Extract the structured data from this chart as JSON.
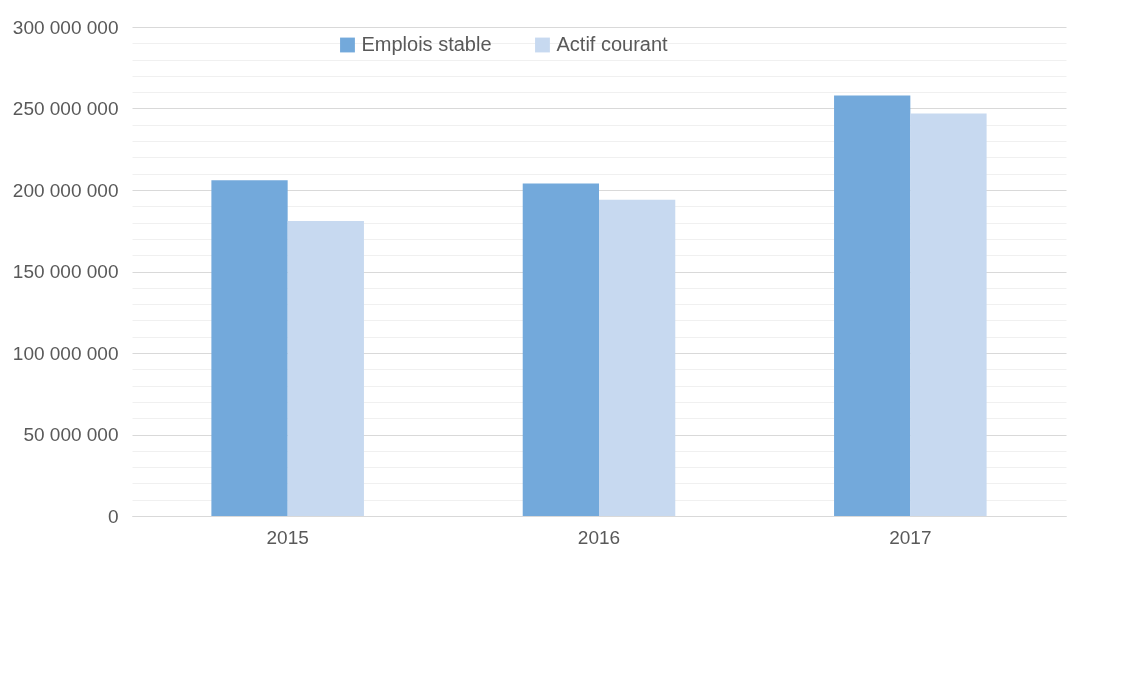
{
  "chart_data": {
    "type": "bar",
    "categories": [
      "2015",
      "2016",
      "2017"
    ],
    "series": [
      {
        "name": "Emplois stable",
        "color": "#73a9db",
        "values": [
          206000000,
          204000000,
          258000000
        ]
      },
      {
        "name": "Actif courant",
        "color": "#c7d9f0",
        "values": [
          181000000,
          194000000,
          247000000
        ]
      }
    ],
    "ylim": [
      0,
      300000000
    ],
    "yticks": [
      {
        "value": 0,
        "label": "0"
      },
      {
        "value": 10000000,
        "label": null
      },
      {
        "value": 20000000,
        "label": null
      },
      {
        "value": 30000000,
        "label": null
      },
      {
        "value": 40000000,
        "label": null
      },
      {
        "value": 50000000,
        "label": "50 000 000"
      },
      {
        "value": 60000000,
        "label": null
      },
      {
        "value": 70000000,
        "label": null
      },
      {
        "value": 80000000,
        "label": null
      },
      {
        "value": 90000000,
        "label": null
      },
      {
        "value": 100000000,
        "label": "100 000 000"
      },
      {
        "value": 110000000,
        "label": null
      },
      {
        "value": 120000000,
        "label": null
      },
      {
        "value": 130000000,
        "label": null
      },
      {
        "value": 140000000,
        "label": null
      },
      {
        "value": 150000000,
        "label": "150 000 000"
      },
      {
        "value": 160000000,
        "label": null
      },
      {
        "value": 170000000,
        "label": null
      },
      {
        "value": 180000000,
        "label": null
      },
      {
        "value": 190000000,
        "label": null
      },
      {
        "value": 200000000,
        "label": "200 000 000"
      },
      {
        "value": 210000000,
        "label": null
      },
      {
        "value": 220000000,
        "label": null
      },
      {
        "value": 230000000,
        "label": null
      },
      {
        "value": 240000000,
        "label": null
      },
      {
        "value": 250000000,
        "label": "250 000 000"
      },
      {
        "value": 260000000,
        "label": null
      },
      {
        "value": 270000000,
        "label": null
      },
      {
        "value": 280000000,
        "label": null
      },
      {
        "value": 290000000,
        "label": null
      },
      {
        "value": 300000000,
        "label": "300 000 000"
      }
    ],
    "grid": true,
    "legend": "top"
  }
}
